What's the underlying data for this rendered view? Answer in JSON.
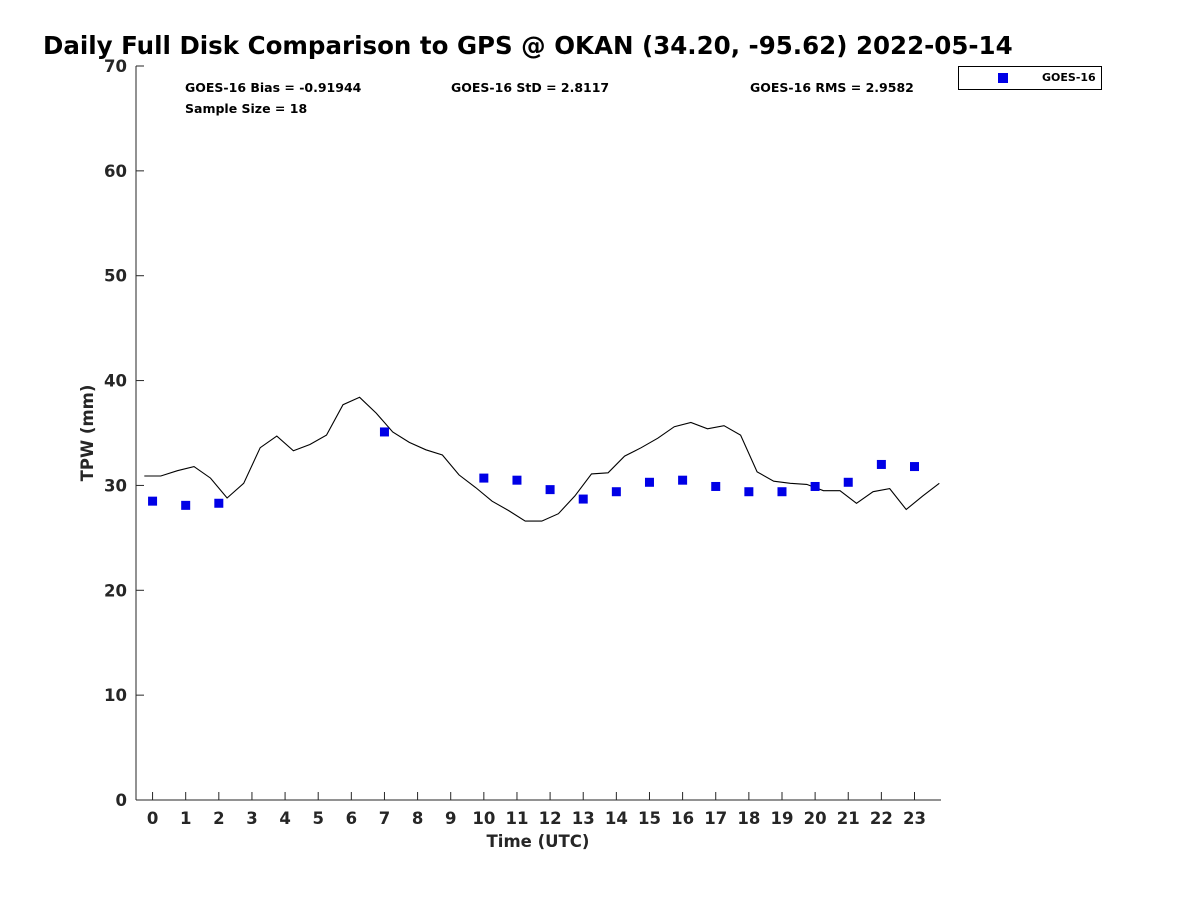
{
  "chart_data": {
    "type": "scatter",
    "title": "Daily Full Disk Comparison to GPS @ OKAN (34.20, -95.62) 2022-05-14",
    "xlabel": "Time (UTC)",
    "ylabel": "TPW (mm)",
    "xlim": [
      -0.5,
      23.8
    ],
    "ylim": [
      0,
      70
    ],
    "x_ticks": [
      "0",
      "1",
      "2",
      "3",
      "4",
      "5",
      "6",
      "7",
      "8",
      "9",
      "10",
      "11",
      "12",
      "13",
      "14",
      "15",
      "16",
      "17",
      "18",
      "19",
      "20",
      "21",
      "22",
      "23"
    ],
    "y_ticks": [
      "0",
      "10",
      "20",
      "30",
      "40",
      "50",
      "60",
      "70"
    ],
    "grid": false,
    "legend_position": "top-right",
    "stats": {
      "bias": "GOES-16 Bias = -0.91944",
      "std": "GOES-16 StD = 2.8117",
      "rms": "GOES-16 RMS = 2.9582",
      "sample": "Sample Size = 18"
    },
    "series": [
      {
        "name": "GOES-16",
        "color": "#0000e6",
        "marker": "square",
        "x": [
          0,
          1,
          2,
          7,
          10,
          11,
          12,
          13,
          14,
          15,
          16,
          17,
          18,
          19,
          20,
          21,
          22,
          23
        ],
        "y": [
          28.5,
          28.1,
          28.3,
          35.1,
          30.7,
          30.5,
          29.6,
          28.7,
          29.4,
          30.3,
          30.5,
          29.9,
          29.4,
          29.4,
          29.9,
          30.3,
          32.0,
          31.8
        ]
      },
      {
        "name": "",
        "color": "#000000",
        "marker": "line",
        "x": [
          -0.25,
          0.25,
          0.75,
          1.25,
          1.75,
          2.25,
          2.75,
          3.25,
          3.75,
          4.25,
          4.75,
          5.25,
          5.75,
          6.25,
          6.75,
          7.25,
          7.75,
          8.25,
          8.75,
          9.25,
          9.75,
          10.25,
          10.75,
          11.25,
          11.75,
          12.25,
          12.75,
          13.25,
          13.75,
          14.25,
          14.75,
          15.25,
          15.75,
          16.25,
          16.75,
          17.25,
          17.75,
          18.25,
          18.75,
          19.25,
          19.75,
          20.25,
          20.75,
          21.25,
          21.75,
          22.25,
          22.75,
          23.25,
          23.75
        ],
        "y": [
          30.9,
          30.9,
          31.4,
          31.8,
          30.7,
          28.8,
          30.2,
          33.6,
          34.7,
          33.3,
          33.9,
          34.8,
          37.7,
          38.4,
          36.9,
          35.1,
          34.1,
          33.4,
          32.9,
          31.0,
          29.8,
          28.5,
          27.6,
          26.6,
          26.6,
          27.3,
          29.0,
          31.1,
          31.2,
          32.8,
          33.6,
          34.5,
          35.6,
          36.0,
          35.4,
          35.7,
          34.8,
          31.3,
          30.4,
          30.2,
          30.1,
          29.5,
          29.5,
          28.3,
          29.4,
          29.7,
          27.7,
          29.0,
          30.2
        ]
      }
    ]
  }
}
